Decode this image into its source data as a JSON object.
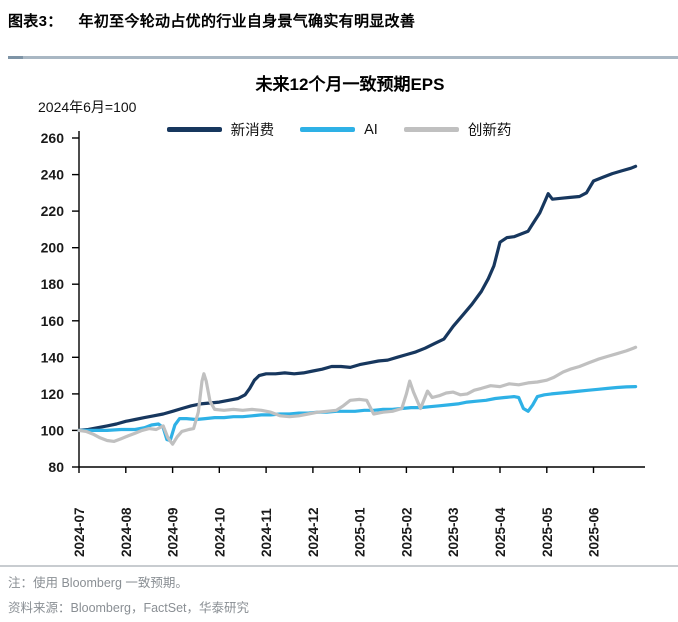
{
  "header": {
    "tag": "图表3：",
    "title": "年初至今轮动占优的行业自身景气确实有明显改善"
  },
  "footer": {
    "note": "注：使用 Bloomberg 一致预期。",
    "source": "资料来源：Bloomberg，FactSet，华泰研究"
  },
  "colors": {
    "navy": "#17375e",
    "cyan": "#2eb1e6",
    "gray": "#c0c0c0",
    "header_rule": "#a9b7c3",
    "header_rule_tip": "#7e94a6",
    "footnote_text": "#8a8f94"
  },
  "chart_data": {
    "type": "line",
    "title": "未来12个月一致预期EPS",
    "subtitle": "2024年6月=100",
    "x_unit": "months since 2024-07",
    "x_tick_labels": [
      "2024-07",
      "2024-08",
      "2024-09",
      "2024-10",
      "2024-11",
      "2024-12",
      "2025-01",
      "2025-02",
      "2025-03",
      "2025-04",
      "2025-05",
      "2025-06"
    ],
    "ylim": [
      80,
      260
    ],
    "yticks": [
      80,
      100,
      120,
      140,
      160,
      180,
      200,
      220,
      240,
      260
    ],
    "grid": false,
    "legend_position": "top",
    "series": [
      {
        "name": "新消费",
        "color": "#17375e",
        "points": [
          [
            0,
            100
          ],
          [
            0.2,
            100.5
          ],
          [
            0.4,
            101.5
          ],
          [
            0.6,
            102.5
          ],
          [
            0.8,
            103.5
          ],
          [
            1.0,
            105
          ],
          [
            1.2,
            106
          ],
          [
            1.4,
            107
          ],
          [
            1.6,
            108
          ],
          [
            1.8,
            109
          ],
          [
            2.0,
            110.5
          ],
          [
            2.2,
            112
          ],
          [
            2.4,
            113.5
          ],
          [
            2.6,
            114.5
          ],
          [
            2.8,
            115
          ],
          [
            3.0,
            115.5
          ],
          [
            3.2,
            116.5
          ],
          [
            3.4,
            117.5
          ],
          [
            3.55,
            119.5
          ],
          [
            3.65,
            123
          ],
          [
            3.75,
            127.5
          ],
          [
            3.85,
            130
          ],
          [
            4.0,
            131
          ],
          [
            4.2,
            131
          ],
          [
            4.4,
            131.5
          ],
          [
            4.6,
            131
          ],
          [
            4.8,
            131.5
          ],
          [
            5.0,
            132.5
          ],
          [
            5.2,
            133.5
          ],
          [
            5.4,
            135
          ],
          [
            5.6,
            135
          ],
          [
            5.8,
            134.5
          ],
          [
            6.0,
            136
          ],
          [
            6.2,
            137
          ],
          [
            6.4,
            138
          ],
          [
            6.6,
            138.5
          ],
          [
            6.8,
            140
          ],
          [
            7.0,
            141.5
          ],
          [
            7.2,
            143
          ],
          [
            7.4,
            145
          ],
          [
            7.6,
            147.5
          ],
          [
            7.8,
            150
          ],
          [
            8.0,
            157
          ],
          [
            8.2,
            163
          ],
          [
            8.4,
            169
          ],
          [
            8.6,
            176
          ],
          [
            8.75,
            183
          ],
          [
            8.87,
            190
          ],
          [
            9.0,
            203
          ],
          [
            9.15,
            205.5
          ],
          [
            9.3,
            206
          ],
          [
            9.45,
            207.5
          ],
          [
            9.6,
            209
          ],
          [
            9.7,
            213
          ],
          [
            9.85,
            219
          ],
          [
            9.97,
            226
          ],
          [
            10.03,
            229.5
          ],
          [
            10.12,
            226.5
          ],
          [
            10.3,
            227
          ],
          [
            10.5,
            227.5
          ],
          [
            10.7,
            228
          ],
          [
            10.85,
            230
          ],
          [
            11.0,
            236.5
          ],
          [
            11.2,
            238.5
          ],
          [
            11.4,
            240.5
          ],
          [
            11.6,
            242
          ],
          [
            11.8,
            243.5
          ],
          [
            11.9,
            244.5
          ]
        ]
      },
      {
        "name": "AI",
        "color": "#2eb1e6",
        "points": [
          [
            0,
            100
          ],
          [
            0.3,
            100
          ],
          [
            0.6,
            100
          ],
          [
            0.9,
            100.5
          ],
          [
            1.2,
            100.5
          ],
          [
            1.4,
            101.5
          ],
          [
            1.55,
            103
          ],
          [
            1.7,
            103.5
          ],
          [
            1.8,
            101.5
          ],
          [
            1.88,
            95
          ],
          [
            1.95,
            94.5
          ],
          [
            2.05,
            103
          ],
          [
            2.15,
            106.5
          ],
          [
            2.3,
            106.5
          ],
          [
            2.5,
            106
          ],
          [
            2.7,
            106.5
          ],
          [
            2.9,
            107
          ],
          [
            3.1,
            107
          ],
          [
            3.3,
            107.5
          ],
          [
            3.5,
            107.5
          ],
          [
            3.7,
            108
          ],
          [
            3.9,
            108.5
          ],
          [
            4.1,
            108.5
          ],
          [
            4.3,
            109
          ],
          [
            4.5,
            109
          ],
          [
            4.7,
            109.5
          ],
          [
            4.9,
            109.5
          ],
          [
            5.1,
            110
          ],
          [
            5.3,
            110
          ],
          [
            5.5,
            110.5
          ],
          [
            5.7,
            110.5
          ],
          [
            5.9,
            110.5
          ],
          [
            6.1,
            111
          ],
          [
            6.3,
            111
          ],
          [
            6.5,
            111.5
          ],
          [
            6.7,
            111.5
          ],
          [
            6.9,
            112
          ],
          [
            7.1,
            112.5
          ],
          [
            7.3,
            112.5
          ],
          [
            7.5,
            113
          ],
          [
            7.7,
            113.5
          ],
          [
            7.9,
            114
          ],
          [
            8.1,
            114.5
          ],
          [
            8.3,
            115.5
          ],
          [
            8.5,
            116
          ],
          [
            8.7,
            116.5
          ],
          [
            8.9,
            117.5
          ],
          [
            9.1,
            118
          ],
          [
            9.3,
            118.5
          ],
          [
            9.4,
            118
          ],
          [
            9.5,
            112
          ],
          [
            9.6,
            110.5
          ],
          [
            9.7,
            114
          ],
          [
            9.8,
            118.5
          ],
          [
            9.95,
            119.5
          ],
          [
            10.1,
            120
          ],
          [
            10.3,
            120.5
          ],
          [
            10.5,
            121
          ],
          [
            10.7,
            121.5
          ],
          [
            10.9,
            122
          ],
          [
            11.1,
            122.5
          ],
          [
            11.3,
            123
          ],
          [
            11.5,
            123.5
          ],
          [
            11.7,
            123.8
          ],
          [
            11.9,
            124
          ]
        ]
      },
      {
        "name": "创新药",
        "color": "#c0c0c0",
        "points": [
          [
            0,
            100
          ],
          [
            0.15,
            99.5
          ],
          [
            0.3,
            98
          ],
          [
            0.45,
            96
          ],
          [
            0.6,
            94.5
          ],
          [
            0.75,
            94
          ],
          [
            0.9,
            95.5
          ],
          [
            1.05,
            97
          ],
          [
            1.2,
            98.5
          ],
          [
            1.35,
            100
          ],
          [
            1.5,
            101
          ],
          [
            1.65,
            100.5
          ],
          [
            1.8,
            102.5
          ],
          [
            1.9,
            96
          ],
          [
            2.0,
            92.5
          ],
          [
            2.1,
            96.5
          ],
          [
            2.2,
            99.5
          ],
          [
            2.35,
            100.5
          ],
          [
            2.45,
            101
          ],
          [
            2.55,
            110
          ],
          [
            2.63,
            127
          ],
          [
            2.67,
            131
          ],
          [
            2.72,
            127
          ],
          [
            2.8,
            116
          ],
          [
            2.9,
            111.5
          ],
          [
            3.1,
            111
          ],
          [
            3.3,
            111.5
          ],
          [
            3.5,
            111
          ],
          [
            3.7,
            111.5
          ],
          [
            3.9,
            111
          ],
          [
            4.1,
            110
          ],
          [
            4.3,
            108
          ],
          [
            4.5,
            107.5
          ],
          [
            4.7,
            108
          ],
          [
            4.9,
            109
          ],
          [
            5.1,
            110
          ],
          [
            5.3,
            110.5
          ],
          [
            5.5,
            111
          ],
          [
            5.65,
            113.5
          ],
          [
            5.8,
            116.5
          ],
          [
            6.0,
            117
          ],
          [
            6.15,
            116.5
          ],
          [
            6.3,
            109
          ],
          [
            6.5,
            110
          ],
          [
            6.7,
            110.5
          ],
          [
            6.9,
            112
          ],
          [
            7.0,
            120
          ],
          [
            7.07,
            127
          ],
          [
            7.15,
            121
          ],
          [
            7.3,
            112
          ],
          [
            7.45,
            121.5
          ],
          [
            7.55,
            118
          ],
          [
            7.7,
            119
          ],
          [
            7.85,
            120.5
          ],
          [
            8.0,
            121
          ],
          [
            8.15,
            119.5
          ],
          [
            8.3,
            120
          ],
          [
            8.45,
            122
          ],
          [
            8.6,
            123
          ],
          [
            8.8,
            124.5
          ],
          [
            9.0,
            124
          ],
          [
            9.2,
            125.5
          ],
          [
            9.4,
            125
          ],
          [
            9.6,
            126
          ],
          [
            9.8,
            126.5
          ],
          [
            10.0,
            127.5
          ],
          [
            10.15,
            129
          ],
          [
            10.35,
            132
          ],
          [
            10.5,
            133.5
          ],
          [
            10.7,
            135
          ],
          [
            10.9,
            137
          ],
          [
            11.1,
            139
          ],
          [
            11.3,
            140.5
          ],
          [
            11.5,
            142
          ],
          [
            11.7,
            143.5
          ],
          [
            11.85,
            145
          ],
          [
            11.9,
            145.5
          ]
        ]
      }
    ]
  }
}
